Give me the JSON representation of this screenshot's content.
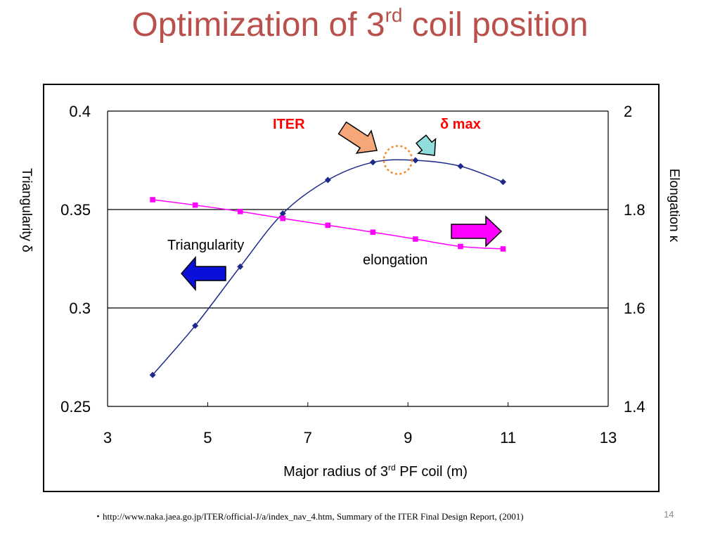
{
  "slide": {
    "title_main": "Optimization of 3",
    "title_sup": "rd",
    "title_tail": " coil position",
    "footer": "・http://www.naka.jaea.go.jp/ITER/official-J/a/index_nav_4.htm, Summary of the ITER Final Design Report, (2001)",
    "page_number": "14"
  },
  "chart_data": {
    "type": "line",
    "title": "Optimization of 3rd coil position",
    "xlabel_main": "Major radius of 3",
    "xlabel_sup": "rd",
    "xlabel_tail": " PF coil  (m)",
    "ylabel_left": "Triangularity  δ",
    "ylabel_right": "Elongation κ",
    "xlim": [
      3,
      13
    ],
    "ylim_left": [
      0.25,
      0.4
    ],
    "ylim_right": [
      1.4,
      2.0
    ],
    "x_ticks": [
      "3",
      "5",
      "7",
      "9",
      "11",
      "13"
    ],
    "y_left_ticks": [
      "0.25",
      "0.3",
      "0.35",
      "0.4"
    ],
    "y_right_ticks": [
      "1.4",
      "1.6",
      "1.8",
      "2"
    ],
    "gridlines_y": [
      0.3,
      0.35
    ],
    "series": [
      {
        "name": "Triangularity",
        "axis": "left",
        "color": "#1c2a8a",
        "marker": "diamond",
        "x": [
          3.9,
          4.75,
          5.65,
          6.5,
          7.4,
          8.3,
          9.15,
          10.05,
          10.9
        ],
        "y": [
          0.266,
          0.291,
          0.321,
          0.348,
          0.365,
          0.374,
          0.375,
          0.372,
          0.364
        ]
      },
      {
        "name": "elongation",
        "axis": "right",
        "color": "#ff00ff",
        "marker": "square",
        "x": [
          3.9,
          4.75,
          5.65,
          6.5,
          7.4,
          8.3,
          9.15,
          10.05,
          10.9
        ],
        "y": [
          1.82,
          1.809,
          1.796,
          1.782,
          1.768,
          1.754,
          1.74,
          1.725,
          1.72
        ]
      }
    ],
    "annotations": {
      "iter_label": "ITER",
      "delta_max_label": "δ  max",
      "triangularity_label": "Triangularity",
      "elongation_label": "elongation",
      "iter_color": "#ff0000",
      "circle_color": "#f08a2a",
      "arrow_iter_color": "#f5a77a",
      "arrow_dmax_color": "#8fdcdc",
      "arrow_left_color": "#0a10d8",
      "arrow_right_color": "#ff00ff",
      "optimum_x": 8.8,
      "optimum_y": 0.375
    }
  }
}
